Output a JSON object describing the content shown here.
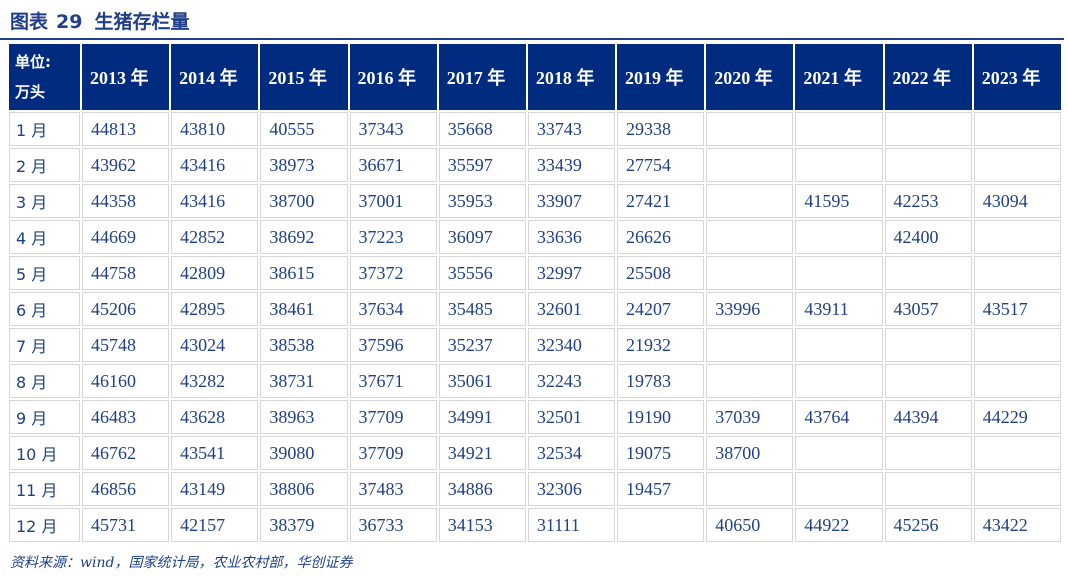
{
  "figure": {
    "label": "图表",
    "number": "29",
    "title": "生猪存栏量"
  },
  "table": {
    "unit_line1": "单位:",
    "unit_line2": "万头",
    "years": [
      "2013 年",
      "2014 年",
      "2015 年",
      "2016 年",
      "2017 年",
      "2018 年",
      "2019 年",
      "2020 年",
      "2021 年",
      "2022 年",
      "2023 年"
    ],
    "rows": [
      {
        "month": "1 月",
        "values": [
          "44813",
          "43810",
          "40555",
          "37343",
          "35668",
          "33743",
          "29338",
          "",
          "",
          "",
          ""
        ]
      },
      {
        "month": "2 月",
        "values": [
          "43962",
          "43416",
          "38973",
          "36671",
          "35597",
          "33439",
          "27754",
          "",
          "",
          "",
          ""
        ]
      },
      {
        "month": "3 月",
        "values": [
          "44358",
          "43416",
          "38700",
          "37001",
          "35953",
          "33907",
          "27421",
          "",
          "41595",
          "42253",
          "43094"
        ]
      },
      {
        "month": "4 月",
        "values": [
          "44669",
          "42852",
          "38692",
          "37223",
          "36097",
          "33636",
          "26626",
          "",
          "",
          "42400",
          ""
        ]
      },
      {
        "month": "5 月",
        "values": [
          "44758",
          "42809",
          "38615",
          "37372",
          "35556",
          "32997",
          "25508",
          "",
          "",
          "",
          ""
        ]
      },
      {
        "month": "6 月",
        "values": [
          "45206",
          "42895",
          "38461",
          "37634",
          "35485",
          "32601",
          "24207",
          "33996",
          "43911",
          "43057",
          "43517"
        ]
      },
      {
        "month": "7 月",
        "values": [
          "45748",
          "43024",
          "38538",
          "37596",
          "35237",
          "32340",
          "21932",
          "",
          "",
          "",
          ""
        ]
      },
      {
        "month": "8 月",
        "values": [
          "46160",
          "43282",
          "38731",
          "37671",
          "35061",
          "32243",
          "19783",
          "",
          "",
          "",
          ""
        ]
      },
      {
        "month": "9 月",
        "values": [
          "46483",
          "43628",
          "38963",
          "37709",
          "34991",
          "32501",
          "19190",
          "37039",
          "43764",
          "44394",
          "44229"
        ]
      },
      {
        "month": "10 月",
        "values": [
          "46762",
          "43541",
          "39080",
          "37709",
          "34921",
          "32534",
          "19075",
          "38700",
          "",
          "",
          ""
        ]
      },
      {
        "month": "11 月",
        "values": [
          "46856",
          "43149",
          "38806",
          "37483",
          "34886",
          "32306",
          "19457",
          "",
          "",
          "",
          ""
        ]
      },
      {
        "month": "12 月",
        "values": [
          "45731",
          "42157",
          "38379",
          "36733",
          "34153",
          "31111",
          "",
          "40650",
          "44922",
          "45256",
          "43422"
        ]
      }
    ]
  },
  "source": "资料来源：wind，国家统计局，农业农村部，华创证券"
}
